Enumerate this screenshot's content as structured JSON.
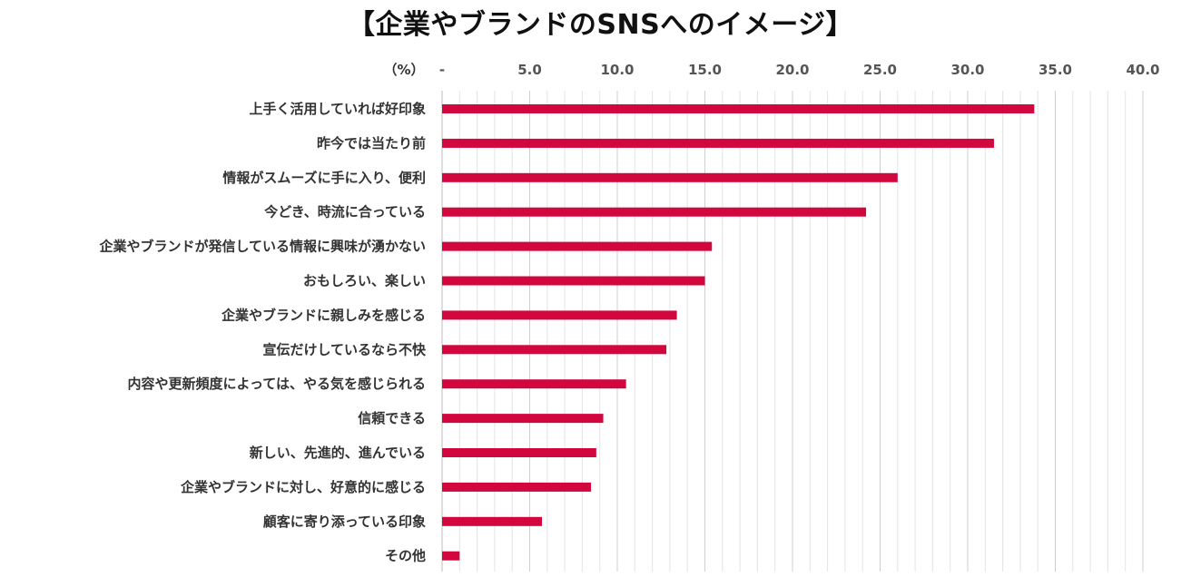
{
  "chart_data": {
    "type": "bar",
    "orientation": "horizontal",
    "title": "【企業やブランドのSNSへのイメージ】",
    "unit_label": "（%）",
    "xlim": [
      0,
      40
    ],
    "x_ticks": [
      {
        "value": 0,
        "label": "-"
      },
      {
        "value": 5,
        "label": "5.0"
      },
      {
        "value": 10,
        "label": "10.0"
      },
      {
        "value": 15,
        "label": "15.0"
      },
      {
        "value": 20,
        "label": "20.0"
      },
      {
        "value": 25,
        "label": "25.0"
      },
      {
        "value": 30,
        "label": "30.0"
      },
      {
        "value": 35,
        "label": "35.0"
      },
      {
        "value": 40,
        "label": "40.0"
      }
    ],
    "minor_grid_step": 1,
    "grid": true,
    "tick_position": "top",
    "bar_color": "#d1073d",
    "categories": [
      "上手く活用していれば好印象",
      "昨今では当たり前",
      "情報がスムーズに手に入り、便利",
      "今どき、時流に合っている",
      "企業やブランドが発信している情報に興味が湧かない",
      "おもしろい、楽しい",
      "企業やブランドに親しみを感じる",
      "宣伝だけしているなら不快",
      "内容や更新頻度によっては、やる気を感じられる",
      "信頼できる",
      "新しい、先進的、進んでいる",
      "企業やブランドに対し、好意的に感じる",
      "顧客に寄り添っている印象",
      "その他"
    ],
    "values": [
      33.8,
      31.5,
      26.0,
      24.2,
      15.4,
      15.0,
      13.4,
      12.8,
      10.5,
      9.2,
      8.8,
      8.5,
      5.7,
      1.0
    ]
  }
}
